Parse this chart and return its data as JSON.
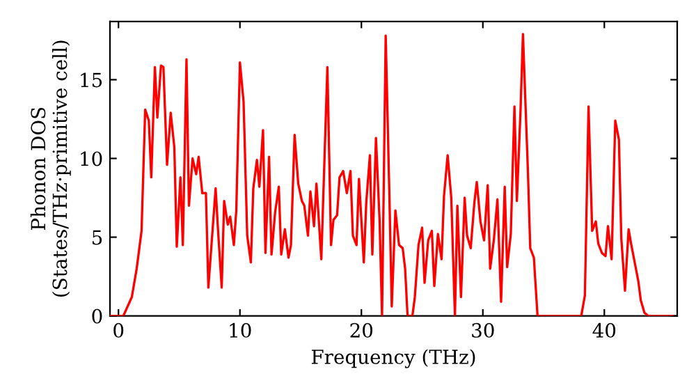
{
  "chart_data": {
    "type": "line",
    "xlabel": "Frequency (THz)",
    "ylabel": "Phonon DOS\n(States/THz·primitive cell)",
    "xlim": [
      -0.7,
      46
    ],
    "ylim": [
      0,
      18.7
    ],
    "xticks": [
      0,
      10,
      20,
      30,
      40
    ],
    "yticks": [
      0,
      5,
      10,
      15
    ],
    "grid": false,
    "marker": "none",
    "line_style": "solid",
    "series": [
      {
        "color": "#ff0000",
        "x": [
          -0.6,
          0.4,
          1.1,
          1.5,
          1.9,
          2.2,
          2.5,
          2.7,
          3.0,
          3.2,
          3.5,
          3.7,
          4.0,
          4.3,
          4.6,
          4.8,
          5.1,
          5.3,
          5.6,
          5.8,
          6.1,
          6.4,
          6.6,
          6.9,
          7.2,
          7.4,
          8.0,
          8.2,
          8.5,
          8.7,
          9.0,
          9.2,
          9.5,
          9.7,
          10.0,
          10.3,
          10.6,
          10.9,
          11.1,
          11.4,
          11.6,
          11.9,
          12.1,
          12.4,
          12.6,
          12.9,
          13.2,
          13.4,
          13.7,
          14.0,
          14.2,
          14.5,
          14.8,
          15.1,
          15.3,
          15.6,
          15.8,
          16.1,
          16.3,
          16.7,
          17.2,
          17.5,
          17.7,
          18.0,
          18.2,
          18.5,
          18.8,
          19.1,
          19.3,
          19.6,
          19.8,
          20.2,
          20.4,
          20.7,
          20.9,
          21.2,
          21.5,
          21.7,
          22.0,
          22.3,
          22.5,
          22.8,
          23.1,
          23.4,
          23.6,
          23.8,
          24.2,
          24.4,
          24.7,
          25.0,
          25.2,
          25.5,
          25.8,
          26.0,
          26.3,
          26.6,
          26.8,
          27.1,
          27.4,
          27.7,
          27.9,
          28.2,
          28.5,
          28.7,
          29.0,
          29.3,
          29.5,
          29.8,
          30.1,
          30.4,
          30.6,
          30.9,
          31.2,
          31.5,
          31.8,
          32.0,
          32.3,
          32.6,
          32.8,
          33.1,
          33.3,
          33.7,
          33.9,
          34.2,
          34.5,
          38.1,
          38.4,
          38.7,
          39.0,
          39.3,
          39.5,
          39.8,
          40.1,
          40.3,
          40.6,
          40.9,
          41.2,
          41.4,
          41.7,
          42.0,
          42.2,
          42.5,
          42.8,
          43.0,
          43.3,
          43.6,
          45.6
        ],
        "values": [
          0,
          0,
          1.2,
          3,
          5.4,
          13.1,
          12.4,
          8.8,
          15.8,
          12.6,
          15.9,
          15.8,
          9.6,
          12.9,
          10.7,
          4.4,
          8.8,
          4.5,
          16.3,
          7,
          10,
          9,
          10.1,
          7.8,
          7.8,
          1.8,
          8.1,
          5.4,
          1.8,
          7.3,
          5.8,
          6.3,
          4.5,
          6.7,
          16.1,
          13.6,
          5.1,
          3.4,
          8.1,
          9.9,
          8.2,
          11.8,
          4,
          10.1,
          3.9,
          6.6,
          8.2,
          3.9,
          5.5,
          3.7,
          4.5,
          11.5,
          8.4,
          7.3,
          7,
          5.1,
          7.9,
          5.7,
          8.4,
          3.6,
          15.8,
          4.5,
          6.1,
          6.4,
          8.8,
          9.2,
          7.8,
          9.2,
          5.1,
          4.5,
          8.7,
          3.4,
          7.2,
          10.2,
          3.9,
          11.3,
          6,
          0,
          17.8,
          7.8,
          0.6,
          6.7,
          4.5,
          4.3,
          3,
          0,
          0,
          1.2,
          4.5,
          5.6,
          2.1,
          4.8,
          5.4,
          1.9,
          5.2,
          3.6,
          7.6,
          10.2,
          7.5,
          0,
          7,
          1.2,
          7.5,
          5.1,
          4.3,
          7.2,
          8.5,
          6,
          4.8,
          8.3,
          3,
          4.8,
          7.4,
          0.9,
          8.2,
          3.1,
          5.2,
          13.3,
          7.3,
          13,
          17.9,
          9.4,
          4.3,
          3.7,
          0,
          0,
          1.3,
          13.3,
          5.4,
          6,
          4.6,
          4,
          3.8,
          5.7,
          3.6,
          12.4,
          11.2,
          4.9,
          1.6,
          5.5,
          4.6,
          3.4,
          2.2,
          1,
          0.2,
          0,
          0
        ]
      }
    ]
  }
}
